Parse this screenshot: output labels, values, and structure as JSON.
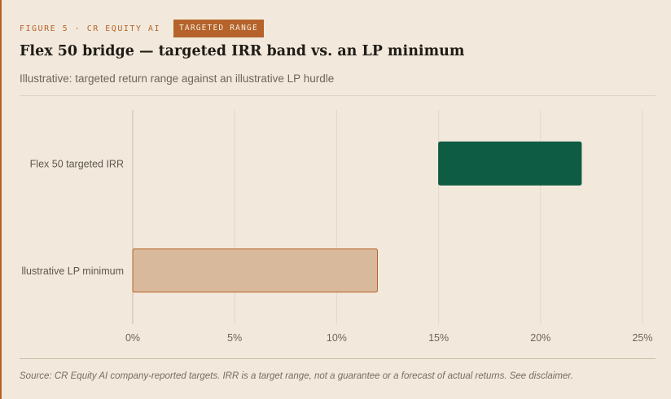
{
  "header": {
    "eyebrow": "FIGURE 5 · CR EQUITY AI",
    "badge": "TARGETED RANGE",
    "title": "Flex 50 bridge — targeted IRR band vs. an LP minimum",
    "subtitle": "Illustrative: targeted return range against an illustrative LP hurdle"
  },
  "chart_data": {
    "type": "bar",
    "orientation": "horizontal",
    "categories": [
      "Flex 50 targeted IRR",
      "llustrative LP minimum"
    ],
    "series": [
      {
        "ranges": [
          [
            15,
            22
          ],
          [
            0,
            12
          ]
        ]
      }
    ],
    "xlim": [
      0,
      25
    ],
    "x_ticks": [
      0,
      5,
      10,
      15,
      20,
      25
    ],
    "x_tick_labels": [
      "0%",
      "5%",
      "10%",
      "15%",
      "20%",
      "25%"
    ],
    "grid": true,
    "colors": {
      "band": "#0e5c43",
      "hurdle": "#d9b99b",
      "hurdle_edge": "#b5632a"
    }
  },
  "footer": {
    "source": "Source: CR Equity AI company-reported targets. IRR is a target range, not a guarantee or a forecast of actual returns. See disclaimer."
  }
}
